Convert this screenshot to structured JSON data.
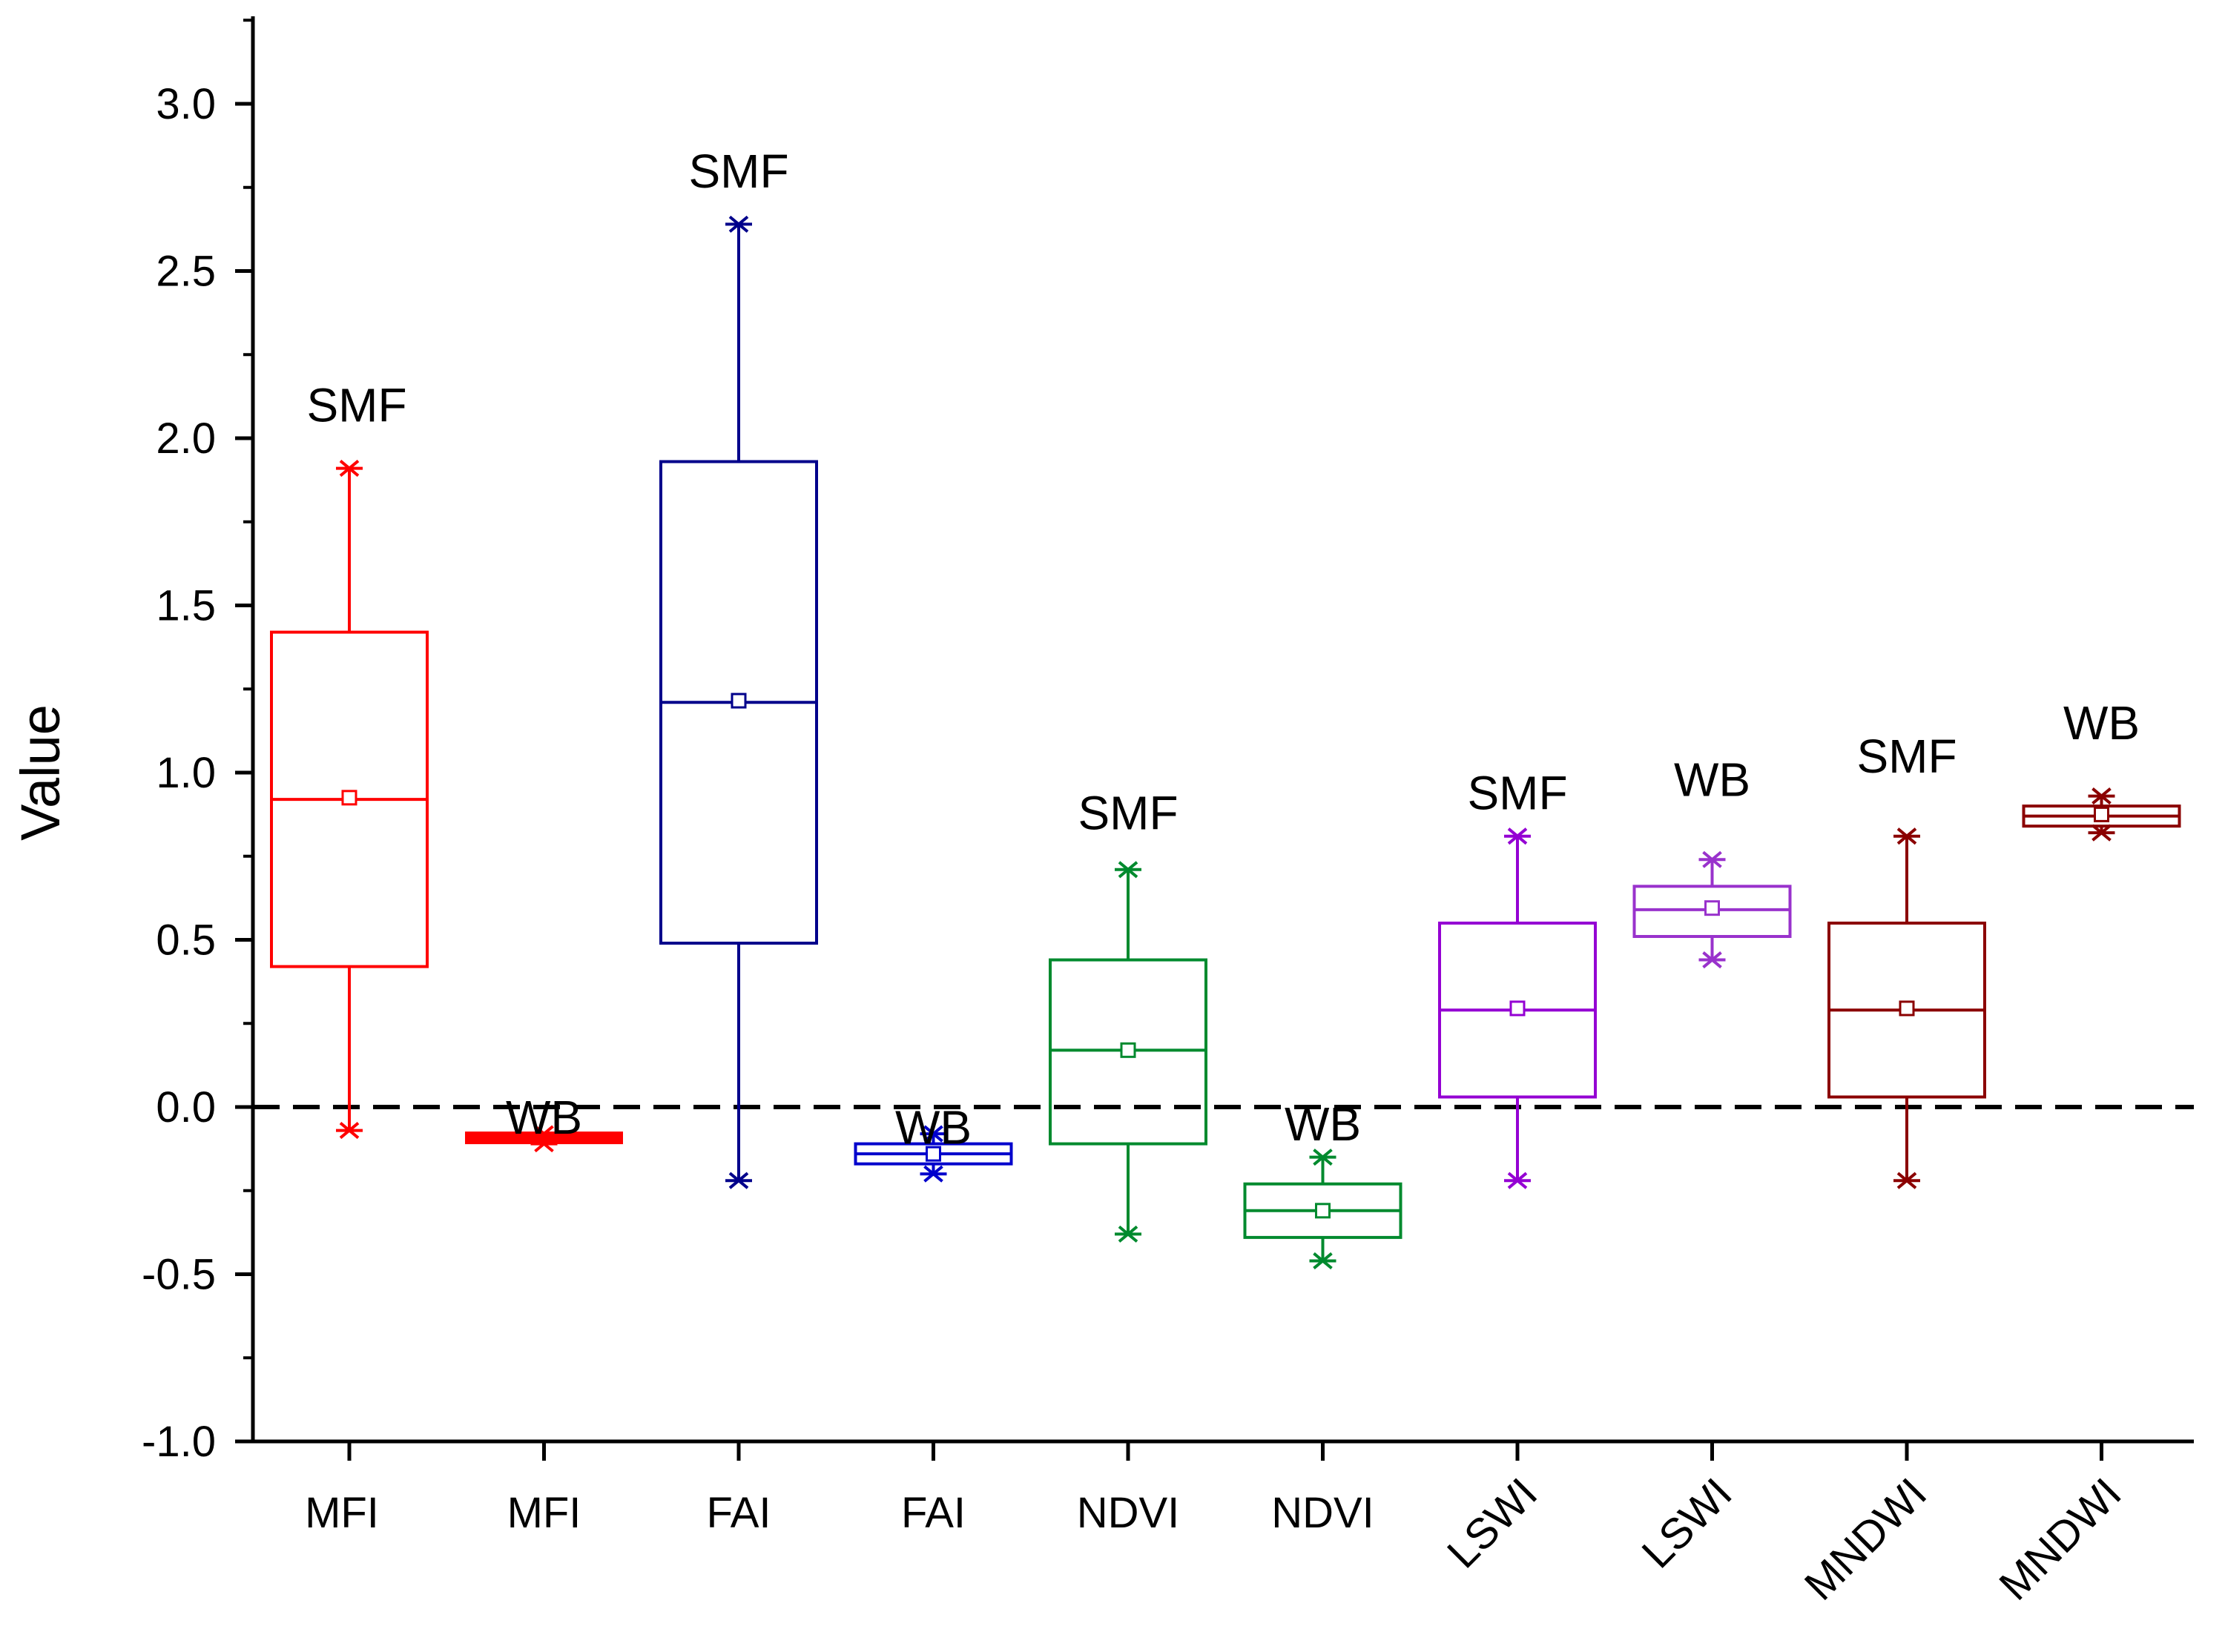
{
  "chart_data": {
    "type": "boxplot",
    "title": "",
    "xlabel": "",
    "ylabel": "Value",
    "ylim": [
      -1.0,
      3.25
    ],
    "yticks": [
      "3.0",
      "2.5",
      "2.0",
      "1.5",
      "1.0",
      "0.5",
      "0.0",
      "-0.5",
      "-1.0"
    ],
    "ytick_values": [
      3.0,
      2.5,
      2.0,
      1.5,
      1.0,
      0.5,
      0.0,
      -0.5,
      -1.0
    ],
    "reference_line": 0.0,
    "boxes": [
      {
        "category": "MFI",
        "group": "SMF",
        "color": "#ff0000",
        "whisker_low": -0.07,
        "q1": 0.42,
        "median": 0.92,
        "mean": 0.925,
        "q3": 1.42,
        "whisker_high": 1.91
      },
      {
        "category": "MFI",
        "group": "WB",
        "color": "#ff0000",
        "whisker_low": -0.11,
        "q1": -0.105,
        "median": -0.097,
        "mean": -0.097,
        "q3": -0.09,
        "whisker_high": -0.08
      },
      {
        "category": "FAI",
        "group": "SMF",
        "color": "#00008b",
        "whisker_low": -0.22,
        "q1": 0.49,
        "median": 1.21,
        "mean": 1.215,
        "q3": 1.93,
        "whisker_high": 2.64
      },
      {
        "category": "FAI",
        "group": "WB",
        "color": "#0000cc",
        "whisker_low": -0.2,
        "q1": -0.17,
        "median": -0.14,
        "mean": -0.14,
        "q3": -0.11,
        "whisker_high": -0.08
      },
      {
        "category": "NDVI",
        "group": "SMF",
        "color": "#008a2e",
        "whisker_low": -0.38,
        "q1": -0.11,
        "median": 0.17,
        "mean": 0.17,
        "q3": 0.44,
        "whisker_high": 0.71
      },
      {
        "category": "NDVI",
        "group": "WB",
        "color": "#008a2e",
        "whisker_low": -0.46,
        "q1": -0.39,
        "median": -0.31,
        "mean": -0.31,
        "q3": -0.23,
        "whisker_high": -0.15
      },
      {
        "category": "LSWI",
        "group": "SMF",
        "color": "#9400d3",
        "whisker_low": -0.22,
        "q1": 0.03,
        "median": 0.29,
        "mean": 0.295,
        "q3": 0.55,
        "whisker_high": 0.81
      },
      {
        "category": "LSWI",
        "group": "WB",
        "color": "#9932cc",
        "whisker_low": 0.44,
        "q1": 0.51,
        "median": 0.59,
        "mean": 0.595,
        "q3": 0.66,
        "whisker_high": 0.74
      },
      {
        "category": "MNDWI",
        "group": "SMF",
        "color": "#8b0000",
        "whisker_low": -0.22,
        "q1": 0.03,
        "median": 0.29,
        "mean": 0.295,
        "q3": 0.55,
        "whisker_high": 0.81
      },
      {
        "category": "MNDWI",
        "group": "WB",
        "color": "#8b0000",
        "whisker_low": 0.82,
        "q1": 0.84,
        "median": 0.87,
        "mean": 0.875,
        "q3": 0.9,
        "whisker_high": 0.93
      }
    ],
    "group_label_positions": [
      2.05,
      -0.08,
      2.75,
      -0.11,
      0.83,
      -0.1,
      0.89,
      0.93,
      1.0,
      1.1
    ]
  }
}
